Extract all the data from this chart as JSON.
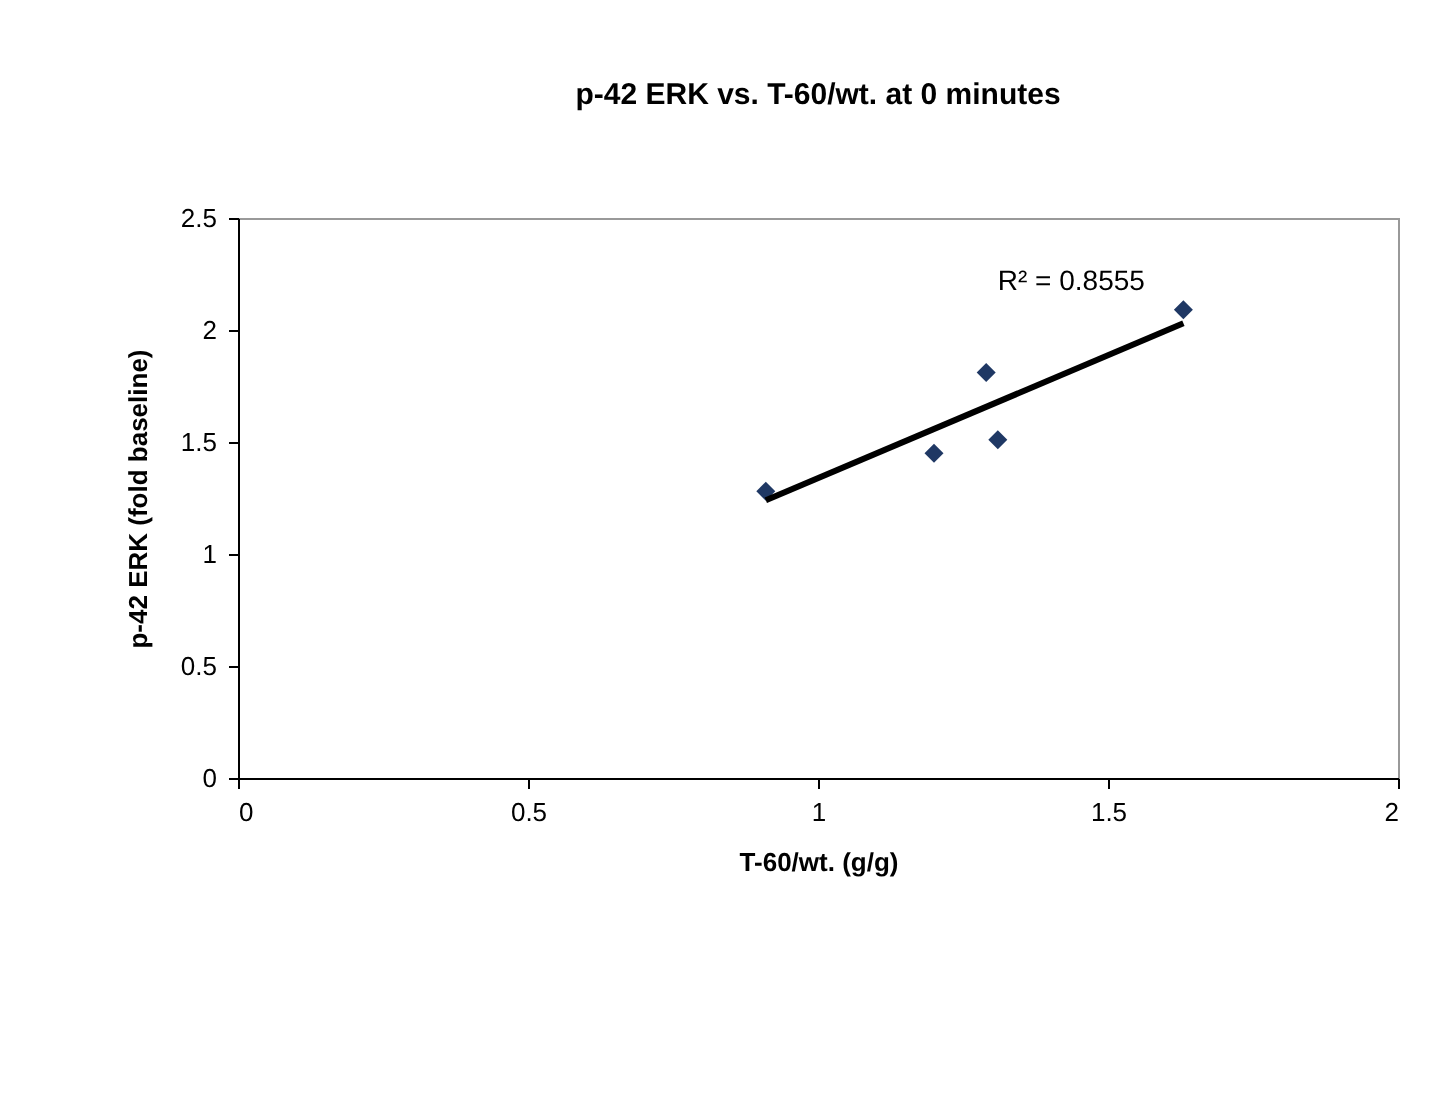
{
  "chart_data": {
    "type": "scatter",
    "title": "p-42 ERK vs. T-60/wt. at 0 minutes",
    "xlabel": "T-60/wt. (g/g)",
    "ylabel": "p-42 ERK (fold baseline)",
    "xlim": [
      0,
      2
    ],
    "xticks": [
      0,
      0.5,
      1,
      1.5,
      2
    ],
    "ylim": [
      0,
      2.5
    ],
    "yticks": [
      0,
      0.5,
      1,
      1.5,
      2,
      2.5
    ],
    "grid": false,
    "marker": "diamond",
    "series": [
      {
        "color": "#1f3864",
        "x": [
          0.91,
          1.2,
          1.29,
          1.31,
          1.63
        ],
        "values": [
          1.28,
          1.45,
          1.81,
          1.51,
          2.09
        ]
      },
      {
        "type": "line",
        "color": "#000000",
        "x": [
          0.91,
          1.63
        ],
        "values": [
          1.24,
          2.03
        ],
        "line_style": "solid",
        "marker": "none"
      }
    ],
    "annotations": [
      "R² = 0.8555"
    ]
  }
}
